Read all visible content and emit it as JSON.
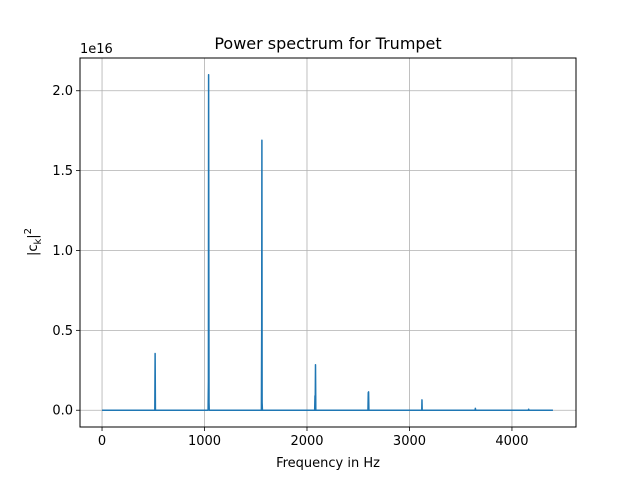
{
  "chart_data": {
    "type": "line",
    "title": "Power spectrum for Trumpet",
    "xlabel": "Frequency in Hz",
    "ylabel": "|c_k|^2",
    "ylabel_parts": {
      "base": "|c",
      "sub": "k",
      "close": "|",
      "sup": "2"
    },
    "y_offset_label": "1e16",
    "xlim": [
      -215,
      4625
    ],
    "ylim": [
      -0.105,
      2.205
    ],
    "x_ticks": [
      0,
      1000,
      2000,
      3000,
      4000
    ],
    "x_tick_labels": [
      "0",
      "1000",
      "2000",
      "3000",
      "4000"
    ],
    "y_ticks": [
      0.0,
      0.5,
      1.0,
      1.5,
      2.0
    ],
    "y_tick_labels": [
      "0.0",
      "0.5",
      "1.0",
      "1.5",
      "2.0"
    ],
    "grid": true,
    "series": [
      {
        "color": "#1f77b4",
        "x": [
          0,
          515,
          518,
          521,
          525,
          1035,
          1038,
          1040,
          1042,
          1044,
          1046,
          1050,
          1555,
          1558,
          1560,
          1562,
          1565,
          2075,
          2078,
          2080,
          2083,
          2086,
          2090,
          2595,
          2598,
          2601,
          2604,
          2608,
          3120,
          3122,
          3124,
          3128,
          3640,
          3643,
          3646,
          4160,
          4163,
          4166,
          4400
        ],
        "y": [
          0.0,
          0.0,
          0.355,
          0.0,
          0.0,
          0.0,
          0.18,
          2.1,
          0.93,
          0.05,
          0.0,
          0.0,
          0.0,
          0.52,
          1.69,
          0.05,
          0.0,
          0.0,
          0.09,
          0.0,
          0.285,
          0.0,
          0.0,
          0.0,
          0.11,
          0.115,
          0.0,
          0.0,
          0.0,
          0.065,
          0.0,
          0.0,
          0.0,
          0.012,
          0.0,
          0.0,
          0.006,
          0.0,
          0.0
        ]
      }
    ]
  }
}
